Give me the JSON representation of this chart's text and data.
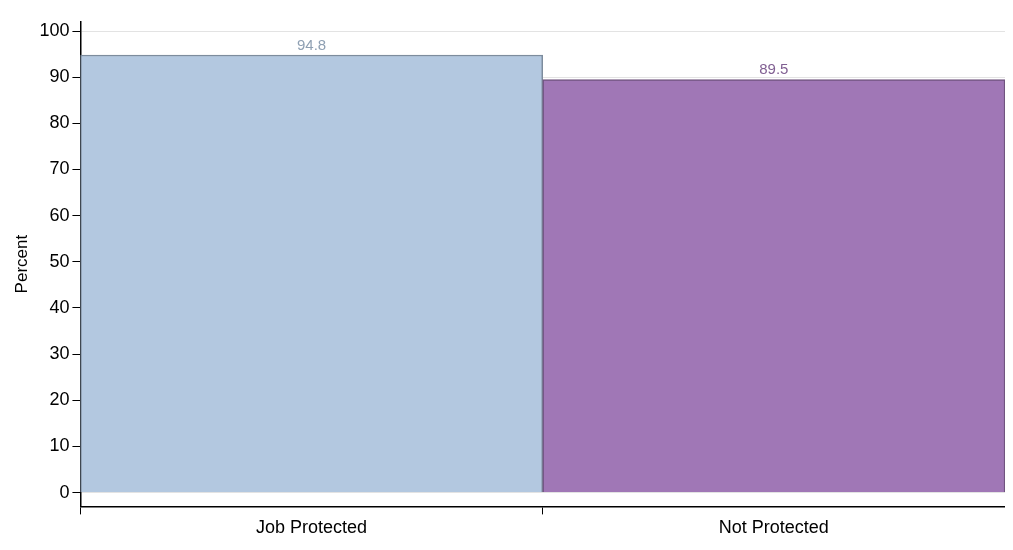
{
  "chart_data": {
    "type": "bar",
    "ylabel": "Percent",
    "categories": [
      "Job Protected",
      "Not Protected"
    ],
    "values": [
      94.8,
      89.5
    ],
    "colors": [
      "#b3c8e0",
      "#a077b6"
    ],
    "ylim": [
      -3,
      102
    ],
    "yticks": [
      0,
      10,
      20,
      30,
      40,
      50,
      60,
      70,
      80,
      90,
      100
    ],
    "grid": "y",
    "data_labels": true
  }
}
